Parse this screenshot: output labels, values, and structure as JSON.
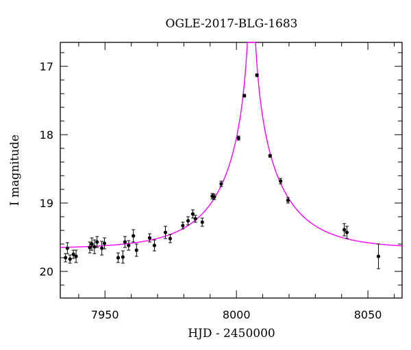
{
  "chart_data": {
    "type": "scatter",
    "title": "OGLE-2017-BLG-1683",
    "xlabel": "HJD - 2450000",
    "ylabel": "I magnitude",
    "xlim": [
      7933,
      8063
    ],
    "ylim": [
      20.39,
      16.65
    ],
    "y_axis_inverted": true,
    "xticks": [
      7950,
      8000,
      8050
    ],
    "xtick_labels": [
      "7950",
      "8000",
      "8050"
    ],
    "yticks": [
      17,
      18,
      19,
      20
    ],
    "ytick_labels": [
      "17",
      "18",
      "19",
      "20"
    ],
    "grid": false,
    "legend": "none",
    "points": [
      {
        "x": 7935.0,
        "y": 19.8,
        "err": 0.06
      },
      {
        "x": 7935.7,
        "y": 19.66,
        "err": 0.08
      },
      {
        "x": 7936.7,
        "y": 19.82,
        "err": 0.06
      },
      {
        "x": 7938.0,
        "y": 19.75,
        "err": 0.06
      },
      {
        "x": 7939.0,
        "y": 19.78,
        "err": 0.09
      },
      {
        "x": 7944.2,
        "y": 19.65,
        "err": 0.08
      },
      {
        "x": 7945.0,
        "y": 19.6,
        "err": 0.09
      },
      {
        "x": 7946.0,
        "y": 19.64,
        "err": 0.1
      },
      {
        "x": 7947.0,
        "y": 19.57,
        "err": 0.08
      },
      {
        "x": 7948.8,
        "y": 19.66,
        "err": 0.1
      },
      {
        "x": 7949.8,
        "y": 19.59,
        "err": 0.08
      },
      {
        "x": 7955.0,
        "y": 19.8,
        "err": 0.07
      },
      {
        "x": 7956.8,
        "y": 19.79,
        "err": 0.09
      },
      {
        "x": 7957.6,
        "y": 19.57,
        "err": 0.08
      },
      {
        "x": 7959.0,
        "y": 19.62,
        "err": 0.07
      },
      {
        "x": 7960.8,
        "y": 19.48,
        "err": 0.09
      },
      {
        "x": 7962.0,
        "y": 19.69,
        "err": 0.09
      },
      {
        "x": 7967.0,
        "y": 19.51,
        "err": 0.06
      },
      {
        "x": 7968.8,
        "y": 19.62,
        "err": 0.08
      },
      {
        "x": 7973.0,
        "y": 19.43,
        "err": 0.09
      },
      {
        "x": 7974.8,
        "y": 19.52,
        "err": 0.06
      },
      {
        "x": 7979.6,
        "y": 19.33,
        "err": 0.05
      },
      {
        "x": 7981.6,
        "y": 19.26,
        "err": 0.06
      },
      {
        "x": 7983.4,
        "y": 19.16,
        "err": 0.06
      },
      {
        "x": 7984.4,
        "y": 19.23,
        "err": 0.05
      },
      {
        "x": 7987.0,
        "y": 19.28,
        "err": 0.06
      },
      {
        "x": 7990.8,
        "y": 18.9,
        "err": 0.04
      },
      {
        "x": 7991.6,
        "y": 18.91,
        "err": 0.04
      },
      {
        "x": 7994.2,
        "y": 18.72,
        "err": 0.04
      },
      {
        "x": 8000.8,
        "y": 18.05,
        "err": 0.03
      },
      {
        "x": 8003.0,
        "y": 17.43,
        "err": 0.02
      },
      {
        "x": 8007.8,
        "y": 17.13,
        "err": 0.02
      },
      {
        "x": 8012.8,
        "y": 18.31,
        "err": 0.02
      },
      {
        "x": 8016.8,
        "y": 18.68,
        "err": 0.04
      },
      {
        "x": 8019.6,
        "y": 18.96,
        "err": 0.04
      },
      {
        "x": 8041.0,
        "y": 19.39,
        "err": 0.09
      },
      {
        "x": 8042.0,
        "y": 19.43,
        "err": 0.09
      },
      {
        "x": 8054.0,
        "y": 19.78,
        "err": 0.18
      }
    ],
    "model": {
      "type": "point-lens light curve",
      "t0": 8005.7,
      "tE": 25,
      "u0": 0.004,
      "baseline_mag": 19.67
    },
    "colors": {
      "points": "#000000",
      "model_curve": "#ff00ff",
      "axes": "#000000"
    }
  }
}
